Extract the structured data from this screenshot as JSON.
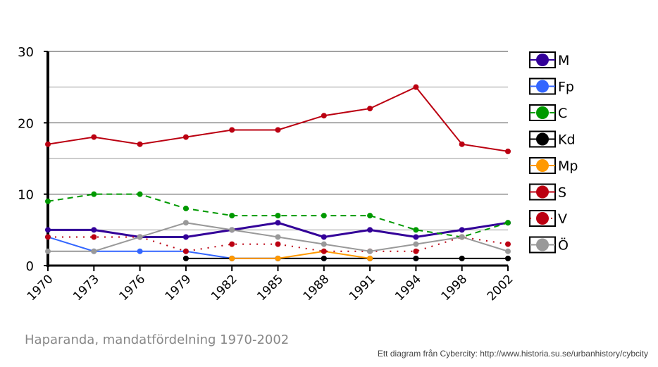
{
  "chart_data": {
    "type": "line",
    "title": "Haparanda, mandatfördelning 1970-2002",
    "credit": "Ett diagram från Cybercity: http://www.historia.su.se/urbanhistory/cybcity",
    "categories": [
      "1970",
      "1973",
      "1976",
      "1979",
      "1982",
      "1985",
      "1988",
      "1991",
      "1994",
      "1998",
      "2002"
    ],
    "ylim": [
      0,
      30
    ],
    "yticks": [
      0,
      10,
      20,
      30
    ],
    "grid": true,
    "legend_placement": "right",
    "series": [
      {
        "name": "M",
        "color": "#330099",
        "dash": "solid",
        "width": 3,
        "values": [
          5,
          5,
          4,
          4,
          5,
          6,
          4,
          5,
          4,
          5,
          6
        ]
      },
      {
        "name": "Fp",
        "color": "#3366ff",
        "dash": "solid",
        "width": 2,
        "values": [
          4,
          2,
          2,
          2,
          1,
          1,
          1,
          1,
          1,
          null,
          null
        ]
      },
      {
        "name": "C",
        "color": "#009900",
        "dash": "dashed",
        "width": 2,
        "values": [
          9,
          10,
          10,
          8,
          7,
          7,
          7,
          7,
          5,
          4,
          6
        ]
      },
      {
        "name": "Kd",
        "color": "#000000",
        "dash": "solid",
        "width": 2,
        "values": [
          null,
          null,
          null,
          1,
          1,
          1,
          1,
          1,
          1,
          1,
          1
        ]
      },
      {
        "name": "Mp",
        "color": "#ff9900",
        "dash": "solid",
        "width": 2,
        "values": [
          null,
          null,
          null,
          null,
          1,
          1,
          2,
          1,
          null,
          null,
          null
        ]
      },
      {
        "name": "S",
        "color": "#bb0011",
        "dash": "solid",
        "width": 2,
        "values": [
          17,
          18,
          17,
          18,
          19,
          19,
          21,
          22,
          25,
          17,
          16
        ]
      },
      {
        "name": "V",
        "color": "#bb0011",
        "dash": "dotted",
        "width": 2,
        "values": [
          4,
          4,
          4,
          2,
          3,
          3,
          2,
          2,
          2,
          4,
          3
        ]
      },
      {
        "name": "Ö",
        "color": "#999999",
        "dash": "solid",
        "width": 2,
        "values": [
          2,
          2,
          4,
          6,
          5,
          4,
          3,
          2,
          3,
          4,
          2
        ]
      }
    ]
  }
}
